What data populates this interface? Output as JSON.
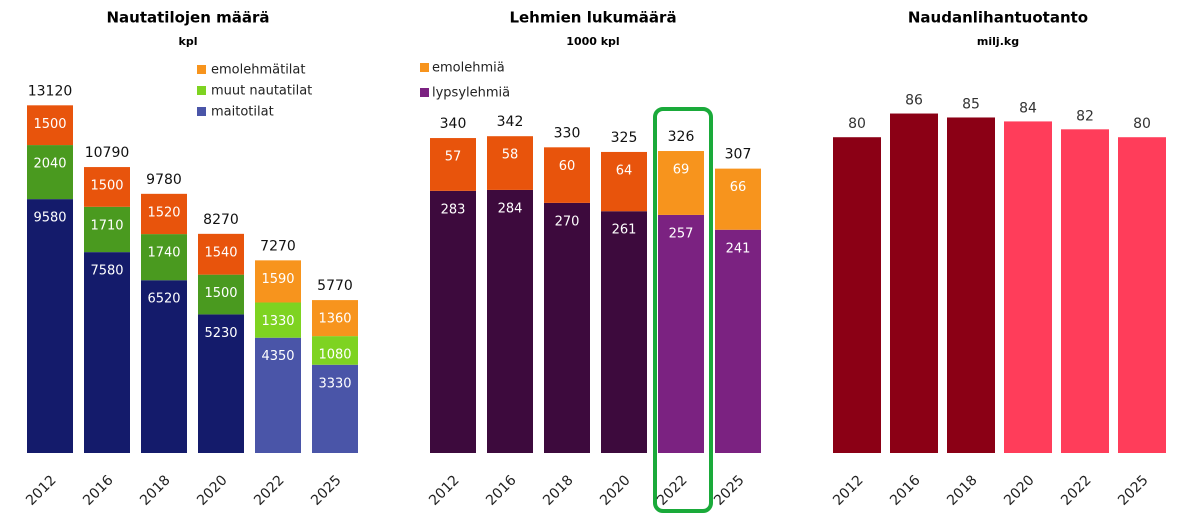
{
  "chart_data": [
    {
      "type": "stacked_bar",
      "title": "Nautatilojen määrä",
      "subtitle": "kpl",
      "categories": [
        "2012",
        "2016",
        "2018",
        "2020",
        "2022",
        "2025"
      ],
      "series": [
        {
          "name": "maitotilat",
          "color": "#4a55a8",
          "colors": [
            "#141b6b",
            "#141b6b",
            "#141b6b",
            "#141b6b",
            "#4a55a8",
            "#4a55a8"
          ],
          "values": [
            9580,
            7580,
            6520,
            5230,
            4350,
            3330
          ]
        },
        {
          "name": "muut nautatilat",
          "color": "#7ed321",
          "colors": [
            "#4a9a1f",
            "#4a9a1f",
            "#4a9a1f",
            "#4a9a1f",
            "#7ed321",
            "#7ed321"
          ],
          "values": [
            2040,
            1710,
            1740,
            1500,
            1330,
            1080
          ]
        },
        {
          "name": "emolehmätilat",
          "color": "#f7941d",
          "colors": [
            "#e8540c",
            "#e8540c",
            "#e8540c",
            "#e8540c",
            "#f7941d",
            "#f7941d"
          ],
          "values": [
            1500,
            1500,
            1520,
            1540,
            1590,
            1360
          ]
        }
      ],
      "totals": [
        13120,
        10790,
        9780,
        8270,
        7270,
        5770
      ],
      "ylim": [
        0,
        14000
      ],
      "legend": "top right"
    },
    {
      "type": "stacked_bar",
      "title": "Lehmien lukumäärä",
      "subtitle": "1000 kpl",
      "categories": [
        "2012",
        "2016",
        "2018",
        "2020",
        "2022",
        "2025"
      ],
      "series": [
        {
          "name": "lypsylehmiä",
          "color": "#7b2281",
          "colors": [
            "#3d0a3d",
            "#3d0a3d",
            "#3d0a3d",
            "#3d0a3d",
            "#7b2281",
            "#7b2281"
          ],
          "values": [
            283,
            284,
            270,
            261,
            257,
            241
          ]
        },
        {
          "name": "emolehmiä",
          "color": "#f7941d",
          "colors": [
            "#e8540c",
            "#e8540c",
            "#e8540c",
            "#e8540c",
            "#f7941d",
            "#f7941d"
          ],
          "values": [
            57,
            58,
            60,
            64,
            69,
            66
          ]
        }
      ],
      "totals": [
        340,
        342,
        330,
        325,
        326,
        307
      ],
      "ylim": [
        0,
        380
      ],
      "legend": "top left"
    },
    {
      "type": "bar",
      "title": "Naudanlihantuotanto",
      "subtitle": "milj.kg",
      "categories": [
        "2012",
        "2016",
        "2018",
        "2020",
        "2022",
        "2025"
      ],
      "values": [
        80,
        86,
        85,
        84,
        82,
        80
      ],
      "colors": [
        "#8b0015",
        "#8b0015",
        "#8b0015",
        "#ff3d5a",
        "#ff3d5a",
        "#ff3d5a"
      ],
      "ylim": [
        0,
        95
      ]
    }
  ]
}
